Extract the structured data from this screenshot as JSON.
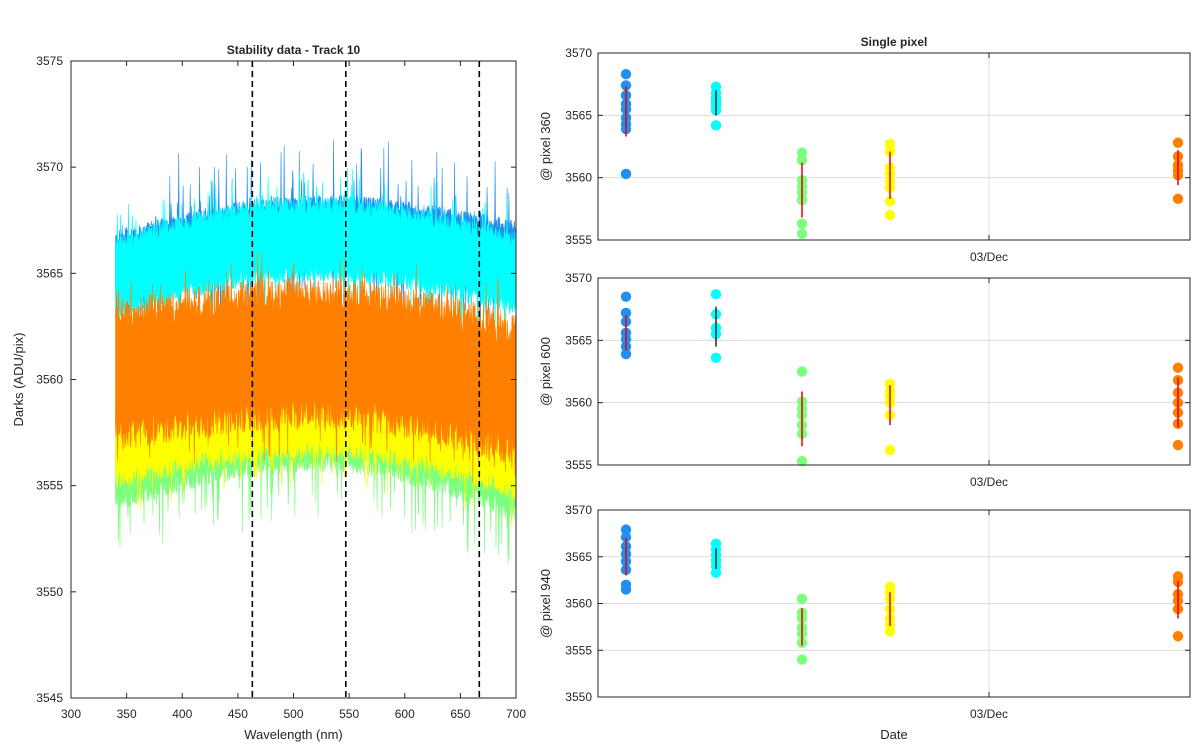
{
  "chart_data": [
    {
      "type": "line",
      "title": "Stability data - Track 10",
      "xlabel": "Wavelength (nm)",
      "ylabel": "Darks (ADU/pix)",
      "xlim": [
        300,
        700
      ],
      "ylim": [
        3545,
        3575
      ],
      "xticks": [
        300,
        350,
        400,
        450,
        500,
        550,
        600,
        650,
        700
      ],
      "yticks": [
        3545,
        3550,
        3555,
        3560,
        3565,
        3570,
        3575
      ],
      "grid": false,
      "vlines": [
        463,
        547,
        667
      ],
      "series": [
        {
          "color": "#1f8ff0",
          "x_range": [
            340,
            700
          ],
          "center": [
            3565.3,
            3567.0,
            3565.8
          ],
          "half_width": 1.7,
          "spike": 3.0
        },
        {
          "color": "#00ffff",
          "x_range": [
            340,
            700
          ],
          "center": [
            3564.8,
            3566.6,
            3565.0
          ],
          "half_width": 2.0,
          "spike": 1.8
        },
        {
          "color": "#7cff7c",
          "x_range": [
            340,
            700
          ],
          "center": [
            3556.0,
            3557.8,
            3555.5
          ],
          "half_width": 2.2,
          "spike": 2.8
        },
        {
          "color": "#ffff00",
          "x_range": [
            340,
            700
          ],
          "center": [
            3557.0,
            3558.5,
            3556.5
          ],
          "half_width": 2.2,
          "spike": 1.5
        },
        {
          "color": "#ff8000",
          "x_range": [
            340,
            700
          ],
          "center": [
            3560.2,
            3561.2,
            3559.5
          ],
          "half_width": 3.6,
          "spike": 1.8
        }
      ]
    },
    {
      "type": "scatter",
      "title": "Single pixel",
      "ylabel": "@ pixel 360",
      "xtick_labels": [
        "03/Dec"
      ],
      "ylim": [
        3555,
        3570
      ],
      "yticks": [
        3555,
        3560,
        3565,
        3570
      ],
      "grid": true,
      "groups": [
        {
          "color": "#1f8ff0",
          "values": [
            3568.3,
            3567.4,
            3566.6,
            3565.9,
            3565.5,
            3564.8,
            3564.3,
            3563.9,
            3560.3
          ],
          "mean": 3565.3,
          "std": 2.0
        },
        {
          "color": "#00ffff",
          "values": [
            3567.3,
            3566.8,
            3566.4,
            3566.1,
            3565.8,
            3565.4,
            3564.2
          ],
          "mean": 3566.0,
          "std": 1.0
        },
        {
          "color": "#7cff7c",
          "values": [
            3562.0,
            3561.4,
            3559.8,
            3559.3,
            3558.8,
            3558.2,
            3556.3,
            3555.5
          ],
          "mean": 3559.0,
          "std": 2.2
        },
        {
          "color": "#ffff00",
          "values": [
            3562.7,
            3562.1,
            3560.8,
            3560.3,
            3559.7,
            3559.2,
            3558.1,
            3557.0
          ],
          "mean": 3560.2,
          "std": 1.9
        },
        {
          "color": "#ff8000",
          "values": [
            3562.8,
            3561.7,
            3561.0,
            3560.6,
            3560.2,
            3558.3
          ],
          "mean": 3560.8,
          "std": 1.4
        }
      ]
    },
    {
      "type": "scatter",
      "ylabel": "@ pixel 600",
      "xtick_labels": [
        "03/Dec"
      ],
      "ylim": [
        3555,
        3570
      ],
      "yticks": [
        3555,
        3560,
        3565,
        3570
      ],
      "grid": true,
      "groups": [
        {
          "color": "#1f8ff0",
          "values": [
            3568.5,
            3567.2,
            3566.5,
            3565.6,
            3565.1,
            3564.5,
            3563.9
          ],
          "mean": 3565.6,
          "std": 1.4
        },
        {
          "color": "#00ffff",
          "values": [
            3568.7,
            3567.1,
            3566.0,
            3565.5,
            3563.6
          ],
          "mean": 3566.1,
          "std": 1.6
        },
        {
          "color": "#7cff7c",
          "values": [
            3562.5,
            3560.1,
            3559.5,
            3559.0,
            3558.2,
            3557.5,
            3555.3
          ],
          "mean": 3558.7,
          "std": 2.2
        },
        {
          "color": "#ffff00",
          "values": [
            3561.5,
            3560.9,
            3560.5,
            3560.0,
            3559.0,
            3556.2
          ],
          "mean": 3559.8,
          "std": 1.6
        },
        {
          "color": "#ff8000",
          "values": [
            3562.8,
            3561.8,
            3560.8,
            3560.0,
            3559.2,
            3558.3,
            3556.6
          ],
          "mean": 3560.0,
          "std": 2.0
        }
      ]
    },
    {
      "type": "scatter",
      "ylabel": "@ pixel 940",
      "xlabel": "Date",
      "xtick_labels": [
        "03/Dec"
      ],
      "ylim": [
        3550,
        3570
      ],
      "yticks": [
        3550,
        3555,
        3560,
        3565,
        3570
      ],
      "grid": true,
      "groups": [
        {
          "color": "#1f8ff0",
          "values": [
            3567.9,
            3567.1,
            3566.1,
            3565.3,
            3564.5,
            3563.6,
            3562.0,
            3561.5
          ],
          "mean": 3565.0,
          "std": 2.0
        },
        {
          "color": "#00ffff",
          "values": [
            3566.4,
            3565.8,
            3565.2,
            3564.6,
            3564.0,
            3563.3
          ],
          "mean": 3564.8,
          "std": 1.1
        },
        {
          "color": "#7cff7c",
          "values": [
            3560.5,
            3559.0,
            3558.4,
            3557.4,
            3556.8,
            3555.8,
            3554.0
          ],
          "mean": 3557.5,
          "std": 2.0
        },
        {
          "color": "#ffff00",
          "values": [
            3561.8,
            3561.2,
            3560.5,
            3559.4,
            3558.4,
            3557.7,
            3557.0
          ],
          "mean": 3559.4,
          "std": 1.8
        },
        {
          "color": "#ff8000",
          "values": [
            3562.9,
            3562.3,
            3561.0,
            3560.3,
            3559.4,
            3556.5
          ],
          "mean": 3560.4,
          "std": 2.0
        }
      ]
    }
  ]
}
